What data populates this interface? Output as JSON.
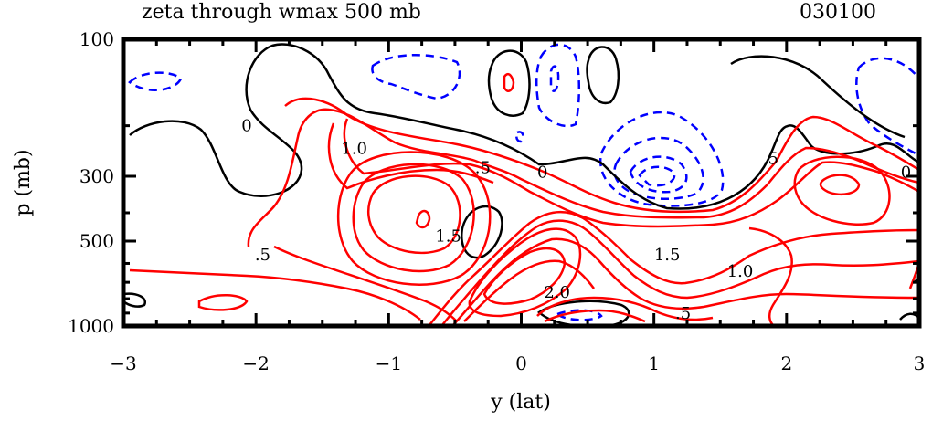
{
  "chart_data": {
    "type": "contour",
    "title": "zeta through wmax 500 mb",
    "run_id": "030100",
    "xlabel": "y (lat)",
    "ylabel": "p (mb)",
    "xlim": [
      -3,
      3
    ],
    "x_ticks": [
      -3,
      -2,
      -1,
      0,
      1,
      2,
      3
    ],
    "x_tick_labels": [
      "−3",
      "−2",
      "−1",
      "0",
      "1",
      "2",
      "3"
    ],
    "y_ticks": [
      100,
      300,
      500,
      1000
    ],
    "y_tick_labels": [
      "100",
      "300",
      "500",
      "1000"
    ],
    "contour_labels": [
      {
        "text": "0",
        "y": -2.07,
        "p": 200
      },
      {
        "text": "1.0",
        "y": -1.26,
        "p": 240
      },
      {
        "text": ".5",
        "y": -0.29,
        "p": 280
      },
      {
        "text": "0",
        "y": 0.16,
        "p": 290
      },
      {
        "text": ".5",
        "y": 1.88,
        "p": 260
      },
      {
        "text": "0",
        "y": 2.9,
        "p": 290
      },
      {
        "text": "1.5",
        "y": -0.55,
        "p": 480
      },
      {
        "text": ".5",
        "y": -1.95,
        "p": 560
      },
      {
        "text": "1.5",
        "y": 1.1,
        "p": 560
      },
      {
        "text": "1.0",
        "y": 1.65,
        "p": 640
      },
      {
        "text": "2.0",
        "y": 0.27,
        "p": 760
      },
      {
        "text": ".5",
        "y": 1.22,
        "p": 900
      }
    ],
    "colors": {
      "positive": "#ff0000",
      "negative": "#0000ff",
      "zero": "#000000"
    }
  }
}
